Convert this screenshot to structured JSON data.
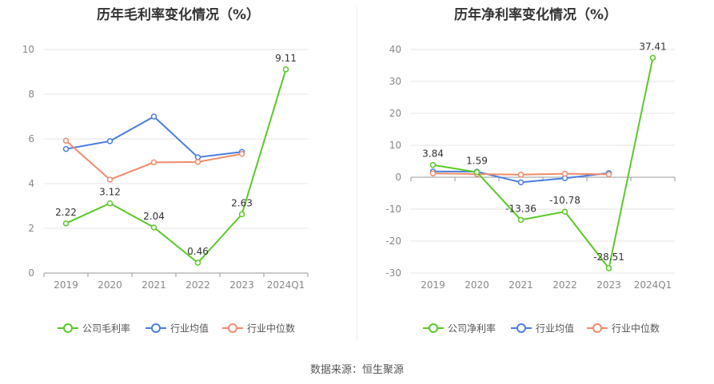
{
  "source": "数据来源：恒生聚源",
  "chart_data": [
    {
      "type": "line",
      "title": "历年毛利率变化情况（%）",
      "categories": [
        "2019",
        "2020",
        "2021",
        "2022",
        "2023",
        "2024Q1"
      ],
      "ylim": [
        0,
        10
      ],
      "yticks": [
        0,
        2,
        4,
        6,
        8,
        10
      ],
      "grid": true,
      "legend_position": "bottom",
      "series": [
        {
          "name": "公司毛利率",
          "color": "#5ac928",
          "values": [
            2.22,
            3.12,
            2.04,
            0.46,
            2.63,
            9.11
          ],
          "labels": [
            "2.22",
            "3.12",
            "2.04",
            "0.46",
            "2.63",
            "9.11"
          ]
        },
        {
          "name": "行业均值",
          "color": "#4a7ee0",
          "values": [
            5.55,
            5.9,
            7.0,
            5.18,
            5.42,
            null
          ]
        },
        {
          "name": "行业中位数",
          "color": "#f08c6a",
          "values": [
            5.92,
            4.18,
            4.95,
            4.97,
            5.33,
            null
          ]
        }
      ]
    },
    {
      "type": "line",
      "title": "历年净利率变化情况（%）",
      "categories": [
        "2019",
        "2020",
        "2021",
        "2022",
        "2023",
        "2024Q1"
      ],
      "ylim": [
        -30,
        40
      ],
      "yticks": [
        -30,
        -20,
        -10,
        0,
        10,
        20,
        30,
        40
      ],
      "grid": true,
      "legend_position": "bottom",
      "series": [
        {
          "name": "公司净利率",
          "color": "#5ac928",
          "values": [
            3.84,
            1.59,
            -13.36,
            -10.78,
            -28.51,
            37.41
          ],
          "labels": [
            "3.84",
            "1.59",
            "-13.36",
            "-10.78",
            "-28.51",
            "37.41"
          ]
        },
        {
          "name": "行业均值",
          "color": "#4a7ee0",
          "values": [
            1.8,
            1.75,
            -1.6,
            -0.3,
            1.3,
            null
          ]
        },
        {
          "name": "行业中位数",
          "color": "#f08c6a",
          "values": [
            1.2,
            1.0,
            0.8,
            1.1,
            0.9,
            null
          ]
        }
      ]
    }
  ]
}
